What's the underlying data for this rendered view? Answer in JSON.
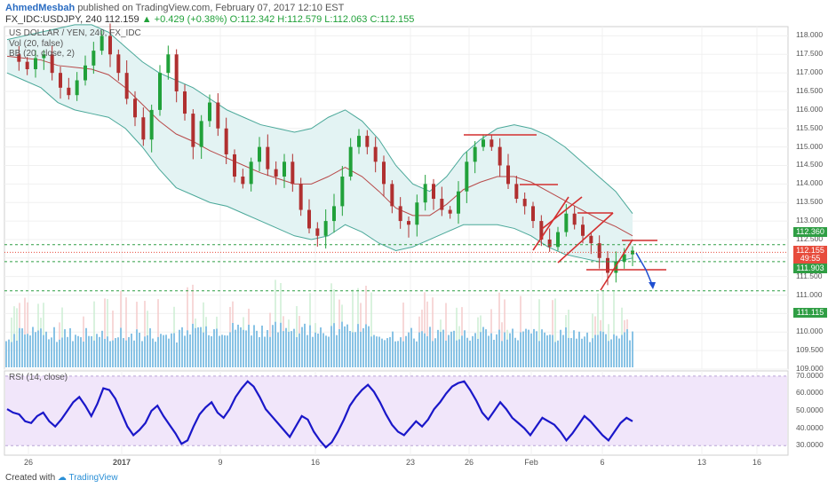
{
  "header": {
    "author": "AhmedMesbah",
    "published": "published on TradingView.com, February 07, 2017 12:10 EST",
    "symbol": "FX_IDC:USDJPY, 240",
    "last": "112.159",
    "change": "▲ +0.429 (+0.38%)",
    "ohlc": "O:112.342 H:112.579 L:112.063 C:112.155"
  },
  "legend": {
    "title": "US DOLLAR / YEN, 240, FX_IDC",
    "vol": "Vol (20, false)",
    "bb": "BB (20, close, 2)",
    "rsi": "RSI (14, close)"
  },
  "price_tags": [
    {
      "text": "112.360",
      "color": "#2f9e44"
    },
    {
      "text": "112.155",
      "color": "#e74c3c"
    },
    {
      "text": "49:55",
      "color": "#e74c3c"
    },
    {
      "text": "111.903",
      "color": "#2f9e44"
    },
    {
      "text": "111.115",
      "color": "#2f9e44"
    }
  ],
  "footer": {
    "created": "Created with",
    "brand": "TradingView"
  },
  "colors": {
    "up": "#21a13a",
    "down": "#b03030",
    "bb_fill": "#e3f3f3",
    "bb_line": "#4aa899",
    "basis": "#b84a4a",
    "rsi": "#1a17c9",
    "rsi_band": "#f1e6fa",
    "trend": "#d32f2f",
    "arrow": "#1f4fd1",
    "support": "#2f9e44",
    "volume": "#74b9e0"
  },
  "chart_data": [
    {
      "type": "candlestick",
      "title": "US DOLLAR / YEN, 240, FX_IDC",
      "x": [
        "26",
        "2017",
        "9",
        "16",
        "23",
        "26",
        "Feb",
        "6",
        "13",
        "16"
      ],
      "ylim": [
        109.0,
        118.25
      ],
      "y_ticks": [
        "118.000",
        "117.500",
        "117.000",
        "116.500",
        "116.000",
        "115.500",
        "115.000",
        "114.500",
        "114.000",
        "113.500",
        "113.000",
        "112.500",
        "112.000",
        "111.500",
        "111.000",
        "110.500",
        "110.000",
        "109.500",
        "109.000"
      ],
      "close_path": [
        117.5,
        117.3,
        117.1,
        117.4,
        117.5,
        117.0,
        116.6,
        116.4,
        116.8,
        117.2,
        117.6,
        118.0,
        117.5,
        117.0,
        116.3,
        115.8,
        115.2,
        116.0,
        117.0,
        117.5,
        116.5,
        115.9,
        115.0,
        115.7,
        116.2,
        115.5,
        114.8,
        114.2,
        114.0,
        114.6,
        115.0,
        114.4,
        114.2,
        114.6,
        114.0,
        113.3,
        112.8,
        112.6,
        113.0,
        113.4,
        114.2,
        115.0,
        115.3,
        115.0,
        114.6,
        114.0,
        113.4,
        113.0,
        112.9,
        113.5,
        114.0,
        113.6,
        113.3,
        113.2,
        113.8,
        114.6,
        115.0,
        115.2,
        115.0,
        114.5,
        114.0,
        113.6,
        113.4,
        113.0,
        112.5,
        112.3,
        112.7,
        113.2,
        112.9,
        112.6,
        112.4,
        112.0,
        111.6,
        111.9,
        112.1,
        112.2
      ],
      "bb_upper": [
        117.9,
        118.0,
        118.1,
        118.2,
        118.3,
        118.3,
        118.1,
        117.7,
        117.3,
        117.0,
        116.8,
        116.6,
        116.3,
        116.0,
        115.8,
        115.6,
        115.5,
        115.4,
        115.5,
        115.8,
        116.0,
        115.7,
        115.2,
        114.5,
        114.0,
        113.8,
        114.2,
        114.8,
        115.2,
        115.5,
        115.6,
        115.5,
        115.3,
        115.0,
        114.6,
        114.2,
        113.8,
        113.2
      ],
      "bb_lower": [
        117.0,
        116.8,
        116.6,
        116.2,
        116.0,
        115.9,
        115.8,
        115.5,
        115.0,
        114.4,
        113.9,
        113.7,
        113.5,
        113.4,
        113.2,
        113.0,
        112.8,
        112.6,
        112.5,
        112.6,
        112.9,
        112.7,
        112.4,
        112.2,
        112.3,
        112.5,
        112.7,
        112.9,
        112.9,
        112.9,
        112.8,
        112.6,
        112.3,
        112.1,
        112.0,
        111.9,
        111.9,
        112.0
      ],
      "annotations": {
        "support_levels": [
          112.36,
          111.903,
          111.115
        ],
        "current_price": 112.155
      }
    },
    {
      "type": "line",
      "title": "RSI (14, close)",
      "ylim": [
        25,
        72
      ],
      "y_ticks": [
        "70.0000",
        "60.0000",
        "50.0000",
        "40.0000",
        "30.0000"
      ],
      "band": [
        30,
        70
      ],
      "values": [
        51,
        49,
        48,
        44,
        43,
        47,
        49,
        44,
        41,
        45,
        50,
        55,
        58,
        53,
        47,
        54,
        63,
        62,
        57,
        49,
        41,
        36,
        39,
        43,
        50,
        53,
        47,
        42,
        37,
        31,
        33,
        41,
        48,
        52,
        55,
        49,
        46,
        51,
        58,
        63,
        67,
        64,
        58,
        51,
        47,
        43,
        39,
        35,
        41,
        47,
        45,
        38,
        33,
        29,
        32,
        38,
        45,
        53,
        58,
        62,
        65,
        61,
        55,
        48,
        42,
        38,
        36,
        40,
        44,
        41,
        45,
        51,
        55,
        60,
        64,
        66,
        67,
        62,
        56,
        49,
        45,
        50,
        55,
        51,
        46,
        43,
        40,
        36,
        41,
        46,
        44,
        42,
        38,
        33,
        37,
        42,
        47,
        44,
        40,
        36,
        33,
        38,
        43,
        46,
        44
      ]
    }
  ]
}
